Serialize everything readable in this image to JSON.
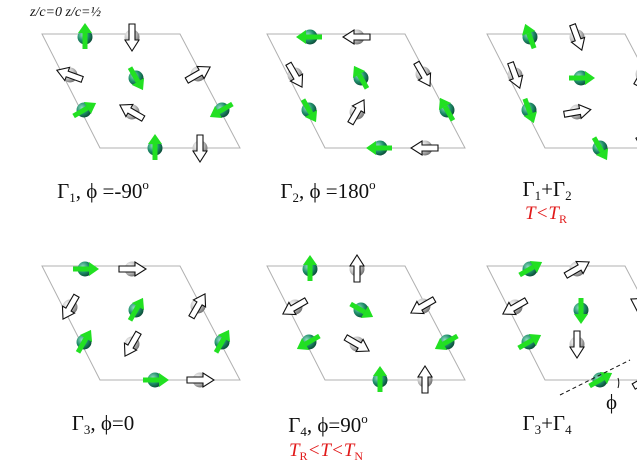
{
  "header": {
    "z0_label": "z/c=0",
    "zhalf_label": "z/c=½"
  },
  "colors": {
    "moment_arrow": "#22e022",
    "atom_z0": "#1f8f6a",
    "atom_zhalf": "#b9b9b9",
    "cell_edge": "#b0b0b0",
    "condition_text": "#e11a1a"
  },
  "panels": [
    {
      "id": "g1",
      "gamma": "1",
      "gamma_b": "",
      "relation": ", ϕ =",
      "value": "-90",
      "deg": "o",
      "condition": null
    },
    {
      "id": "g2",
      "gamma": "2",
      "gamma_b": "",
      "relation": ", ϕ =",
      "value": "180",
      "deg": "o",
      "condition": null
    },
    {
      "id": "g1g2",
      "gamma": "1",
      "gamma_b": "2",
      "relation": "",
      "value": "",
      "deg": "",
      "condition": {
        "prefix": "T",
        "op1": "<T",
        "sub1": "R",
        "op2": "",
        "sub2": ""
      }
    },
    {
      "id": "g3",
      "gamma": "3",
      "gamma_b": "",
      "relation": ", ϕ=",
      "value": "0",
      "deg": "",
      "condition": null
    },
    {
      "id": "g4",
      "gamma": "4",
      "gamma_b": "",
      "relation": ", ϕ=",
      "value": "90",
      "deg": "o",
      "condition": {
        "prefix": "T",
        "op1": "<T<T",
        "sub1": "R",
        "op2": "",
        "sub2": "N"
      }
    },
    {
      "id": "g3g4",
      "gamma": "3",
      "gamma_b": "4",
      "relation": "",
      "value": "",
      "deg": "",
      "condition": null
    }
  ],
  "phi_annotation": "ϕ",
  "legend_icons": [
    "green-moment-arrow-icon",
    "white-moment-arrow-icon",
    "z0-atom-icon",
    "zhalf-atom-icon"
  ]
}
